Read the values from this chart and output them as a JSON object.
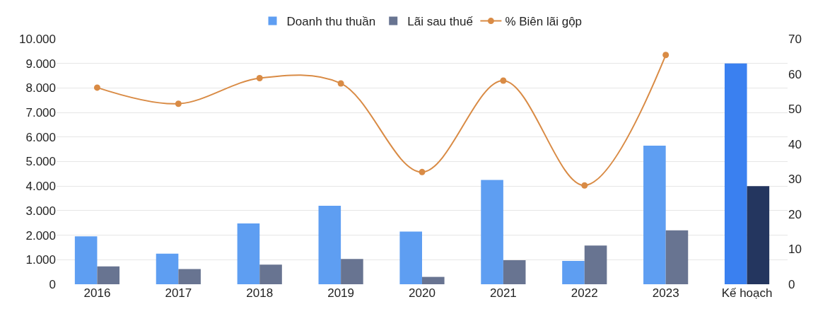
{
  "chart_data": {
    "type": "bar",
    "categories": [
      "2016",
      "2017",
      "2018",
      "2019",
      "2020",
      "2021",
      "2022",
      "2023",
      "Kế hoạch"
    ],
    "series": [
      {
        "name": "Doanh thu thuần",
        "color": "#5e9ef2",
        "colors": [
          null,
          null,
          null,
          null,
          null,
          null,
          null,
          null,
          "#3a80f0"
        ],
        "values": [
          1950,
          1250,
          2480,
          3200,
          2150,
          4250,
          950,
          5650,
          9000
        ]
      },
      {
        "name": "Lãi sau thuế",
        "color": "#687491",
        "colors": [
          null,
          null,
          null,
          null,
          null,
          null,
          null,
          null,
          "#24365f"
        ],
        "values": [
          730,
          620,
          800,
          1030,
          300,
          980,
          1580,
          2200,
          4000
        ]
      },
      {
        "name": "% Biên lãi gộp",
        "type": "line",
        "axis": "y2",
        "color": "#d98b45",
        "marker": "circle",
        "values": [
          56.1,
          51.5,
          58.8,
          57.3,
          32,
          58.1,
          28.2,
          65.4,
          null
        ]
      }
    ],
    "ylim": [
      0,
      10000
    ],
    "yticks": [
      {
        "value": 0,
        "label": "0"
      },
      {
        "value": 1000,
        "label": "1.000"
      },
      {
        "value": 2000,
        "label": "2.000"
      },
      {
        "value": 3000,
        "label": "3.000"
      },
      {
        "value": 4000,
        "label": "4.000"
      },
      {
        "value": 5000,
        "label": "5.000"
      },
      {
        "value": 6000,
        "label": "6.000"
      },
      {
        "value": 7000,
        "label": "7.000"
      },
      {
        "value": 8000,
        "label": "8.000"
      },
      {
        "value": 9000,
        "label": "9.000"
      },
      {
        "value": 10000,
        "label": "10.000"
      }
    ],
    "y2lim": [
      0,
      70
    ],
    "y2ticks": [
      0,
      10,
      20,
      30,
      40,
      50,
      60,
      70
    ],
    "grid": "y",
    "legend": "top"
  }
}
